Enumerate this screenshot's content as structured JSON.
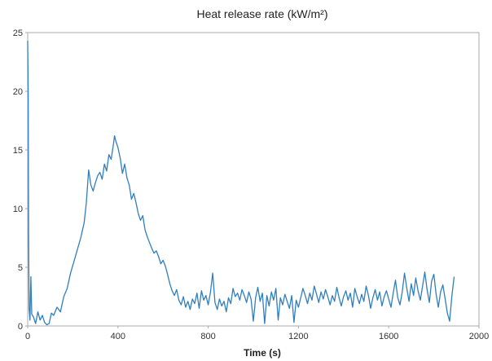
{
  "chart_data": {
    "type": "line",
    "title": "Heat release rate (kW/m²)",
    "xlabel": "Time (s)",
    "ylabel": "",
    "xlim": [
      0,
      2000
    ],
    "ylim": [
      0,
      25
    ],
    "x_ticks": [
      "0",
      "400",
      "800",
      "1200",
      "1600",
      "2000"
    ],
    "y_ticks": [
      "0",
      "5",
      "10",
      "15",
      "20",
      "25"
    ],
    "grid": false,
    "legend": "none",
    "series": [
      {
        "color": "#2f7fbf",
        "points": [
          [
            0,
            24.3
          ],
          [
            2,
            20
          ],
          [
            4,
            8
          ],
          [
            6,
            1.5
          ],
          [
            10,
            0.5
          ],
          [
            14,
            4.2
          ],
          [
            18,
            1.0
          ],
          [
            25,
            0.8
          ],
          [
            35,
            0.2
          ],
          [
            45,
            1.2
          ],
          [
            55,
            0.5
          ],
          [
            65,
            0.9
          ],
          [
            75,
            0.3
          ],
          [
            85,
            0.1
          ],
          [
            95,
            0.2
          ],
          [
            105,
            1.1
          ],
          [
            115,
            0.9
          ],
          [
            130,
            1.6
          ],
          [
            145,
            1.2
          ],
          [
            160,
            2.5
          ],
          [
            175,
            3.2
          ],
          [
            190,
            4.5
          ],
          [
            205,
            5.5
          ],
          [
            220,
            6.5
          ],
          [
            235,
            7.5
          ],
          [
            250,
            8.8
          ],
          [
            260,
            10.5
          ],
          [
            270,
            13.3
          ],
          [
            280,
            12.0
          ],
          [
            290,
            11.5
          ],
          [
            300,
            12.2
          ],
          [
            310,
            12.8
          ],
          [
            320,
            13.1
          ],
          [
            330,
            12.5
          ],
          [
            340,
            13.8
          ],
          [
            350,
            13.2
          ],
          [
            360,
            14.6
          ],
          [
            370,
            14.2
          ],
          [
            380,
            15.5
          ],
          [
            385,
            16.2
          ],
          [
            390,
            15.8
          ],
          [
            400,
            15.2
          ],
          [
            410,
            14.3
          ],
          [
            420,
            13.0
          ],
          [
            430,
            13.8
          ],
          [
            440,
            12.6
          ],
          [
            450,
            12.0
          ],
          [
            460,
            10.8
          ],
          [
            470,
            11.3
          ],
          [
            480,
            10.5
          ],
          [
            490,
            9.6
          ],
          [
            500,
            9.0
          ],
          [
            510,
            9.4
          ],
          [
            520,
            8.2
          ],
          [
            530,
            7.6
          ],
          [
            540,
            7.1
          ],
          [
            550,
            6.6
          ],
          [
            560,
            6.2
          ],
          [
            570,
            6.4
          ],
          [
            580,
            5.9
          ],
          [
            590,
            5.3
          ],
          [
            600,
            5.6
          ],
          [
            610,
            5.1
          ],
          [
            620,
            4.4
          ],
          [
            630,
            3.6
          ],
          [
            640,
            3.0
          ],
          [
            650,
            2.6
          ],
          [
            660,
            3.1
          ],
          [
            670,
            2.2
          ],
          [
            680,
            1.8
          ],
          [
            690,
            2.5
          ],
          [
            700,
            1.6
          ],
          [
            710,
            2.1
          ],
          [
            720,
            1.4
          ],
          [
            730,
            2.3
          ],
          [
            740,
            1.9
          ],
          [
            750,
            2.8
          ],
          [
            760,
            1.5
          ],
          [
            770,
            3.0
          ],
          [
            780,
            2.2
          ],
          [
            790,
            2.6
          ],
          [
            800,
            1.8
          ],
          [
            810,
            2.9
          ],
          [
            820,
            4.5
          ],
          [
            830,
            2.0
          ],
          [
            840,
            1.4
          ],
          [
            850,
            2.3
          ],
          [
            860,
            1.7
          ],
          [
            870,
            2.1
          ],
          [
            880,
            1.2
          ],
          [
            890,
            2.4
          ],
          [
            900,
            1.9
          ],
          [
            910,
            3.2
          ],
          [
            920,
            2.5
          ],
          [
            930,
            2.8
          ],
          [
            940,
            2.2
          ],
          [
            950,
            3.1
          ],
          [
            960,
            2.6
          ],
          [
            970,
            2.0
          ],
          [
            980,
            2.9
          ],
          [
            990,
            2.3
          ],
          [
            1000,
            0.4
          ],
          [
            1010,
            2.4
          ],
          [
            1020,
            3.3
          ],
          [
            1030,
            2.1
          ],
          [
            1040,
            2.8
          ],
          [
            1050,
            0.2
          ],
          [
            1060,
            2.6
          ],
          [
            1070,
            1.7
          ],
          [
            1080,
            2.9
          ],
          [
            1090,
            2.2
          ],
          [
            1100,
            3.2
          ],
          [
            1110,
            0.5
          ],
          [
            1120,
            2.4
          ],
          [
            1130,
            1.8
          ],
          [
            1140,
            2.7
          ],
          [
            1150,
            2.1
          ],
          [
            1160,
            1.5
          ],
          [
            1170,
            2.6
          ],
          [
            1180,
            0.3
          ],
          [
            1190,
            2.2
          ],
          [
            1200,
            1.6
          ],
          [
            1210,
            2.4
          ],
          [
            1220,
            3.2
          ],
          [
            1230,
            2.6
          ],
          [
            1240,
            1.9
          ],
          [
            1250,
            2.8
          ],
          [
            1260,
            2.2
          ],
          [
            1270,
            3.4
          ],
          [
            1280,
            2.7
          ],
          [
            1290,
            2.0
          ],
          [
            1300,
            2.9
          ],
          [
            1310,
            2.3
          ],
          [
            1320,
            3.1
          ],
          [
            1330,
            2.5
          ],
          [
            1340,
            1.8
          ],
          [
            1350,
            2.6
          ],
          [
            1360,
            2.1
          ],
          [
            1370,
            3.3
          ],
          [
            1380,
            2.4
          ],
          [
            1390,
            1.7
          ],
          [
            1400,
            2.5
          ],
          [
            1410,
            3.0
          ],
          [
            1420,
            2.2
          ],
          [
            1430,
            2.8
          ],
          [
            1440,
            1.6
          ],
          [
            1450,
            3.2
          ],
          [
            1460,
            2.5
          ],
          [
            1470,
            1.9
          ],
          [
            1480,
            2.7
          ],
          [
            1490,
            2.1
          ],
          [
            1500,
            3.4
          ],
          [
            1510,
            2.6
          ],
          [
            1520,
            1.5
          ],
          [
            1530,
            2.4
          ],
          [
            1540,
            3.1
          ],
          [
            1550,
            2.2
          ],
          [
            1560,
            2.9
          ],
          [
            1570,
            1.7
          ],
          [
            1580,
            2.5
          ],
          [
            1590,
            3.0
          ],
          [
            1600,
            2.3
          ],
          [
            1610,
            1.6
          ],
          [
            1620,
            2.8
          ],
          [
            1630,
            3.9
          ],
          [
            1640,
            2.4
          ],
          [
            1650,
            1.8
          ],
          [
            1660,
            2.9
          ],
          [
            1670,
            4.5
          ],
          [
            1680,
            3.2
          ],
          [
            1690,
            2.1
          ],
          [
            1700,
            3.6
          ],
          [
            1710,
            2.6
          ],
          [
            1720,
            4.1
          ],
          [
            1730,
            3.0
          ],
          [
            1740,
            2.2
          ],
          [
            1750,
            3.4
          ],
          [
            1760,
            4.6
          ],
          [
            1770,
            3.1
          ],
          [
            1780,
            2.0
          ],
          [
            1790,
            3.8
          ],
          [
            1800,
            4.4
          ],
          [
            1810,
            2.7
          ],
          [
            1820,
            1.6
          ],
          [
            1830,
            2.9
          ],
          [
            1840,
            3.5
          ],
          [
            1850,
            2.3
          ],
          [
            1860,
            1.1
          ],
          [
            1870,
            0.4
          ],
          [
            1880,
            2.6
          ],
          [
            1890,
            4.2
          ]
        ]
      }
    ]
  }
}
